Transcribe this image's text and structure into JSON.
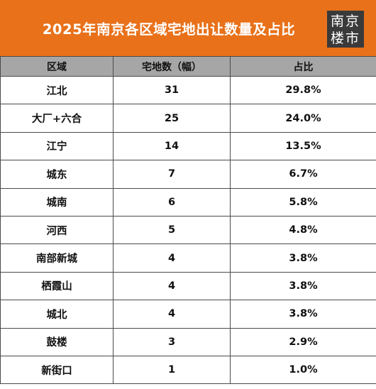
{
  "title": "2025年南京各区域宅地出让数量及占比",
  "logo": {
    "line1": "南京",
    "line2": "楼市"
  },
  "colors": {
    "header_bg": "#e8711a",
    "table_header_bg": "#a6a6a6",
    "logo_bg": "#3a3a3a"
  },
  "table": {
    "headers": [
      "区域",
      "宅地数（幅）",
      "占比"
    ],
    "rows": [
      [
        "江北",
        "31",
        "29.8%"
      ],
      [
        "大厂+六合",
        "25",
        "24.0%"
      ],
      [
        "江宁",
        "14",
        "13.5%"
      ],
      [
        "城东",
        "7",
        "6.7%"
      ],
      [
        "城南",
        "6",
        "5.8%"
      ],
      [
        "河西",
        "5",
        "4.8%"
      ],
      [
        "南部新城",
        "4",
        "3.8%"
      ],
      [
        "栖霞山",
        "4",
        "3.8%"
      ],
      [
        "城北",
        "4",
        "3.8%"
      ],
      [
        "鼓楼",
        "3",
        "2.9%"
      ],
      [
        "新街口",
        "1",
        "1.0%"
      ]
    ]
  }
}
